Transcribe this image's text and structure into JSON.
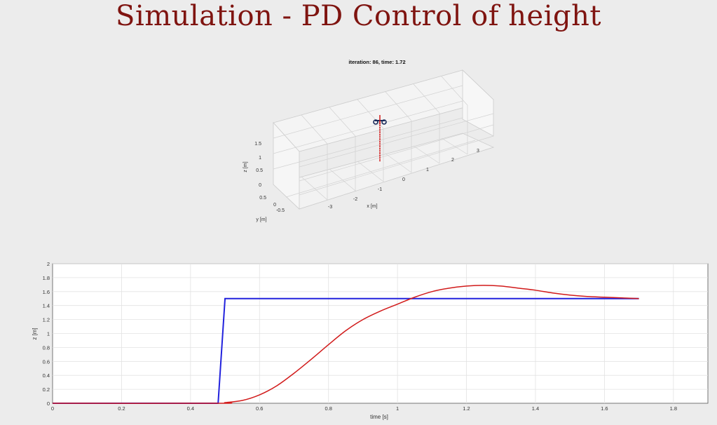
{
  "slide": {
    "title": "Simulation - PD Control of height"
  },
  "sim3d": {
    "iteration_label": "iteration: 86, time: 1.72",
    "xlabel": "x [m]",
    "ylabel": "y [m]",
    "zlabel": "z [m]",
    "x_ticks": [
      "-3",
      "-2",
      "-1",
      "0",
      "1",
      "2",
      "3"
    ],
    "y_ticks": [
      "0.5",
      "0",
      "-0.5"
    ],
    "z_ticks": [
      "0",
      "0.5",
      "1",
      "1.5"
    ],
    "trail_color": "#d11a1a",
    "quad_color": "#1a2a5a"
  },
  "chart_data": {
    "type": "line",
    "title": "",
    "xlabel": "time [s]",
    "ylabel": "z [m]",
    "xlim": [
      0,
      1.9
    ],
    "ylim": [
      0,
      2
    ],
    "grid": true,
    "x_ticks": [
      "0",
      "0.2",
      "0.4",
      "0.6",
      "0.8",
      "1",
      "1.2",
      "1.4",
      "1.6",
      "1.8"
    ],
    "y_ticks": [
      "0",
      "0.2",
      "0.4",
      "0.6",
      "0.8",
      "1",
      "1.2",
      "1.4",
      "1.6",
      "1.8",
      "2"
    ],
    "series": [
      {
        "color": "#2222dd",
        "x": [
          0,
          0.48,
          0.5,
          1.7
        ],
        "y": [
          0,
          0,
          1.5,
          1.5
        ]
      },
      {
        "color": "#d11a1a",
        "x": [
          0,
          0.48,
          0.5,
          0.55,
          0.6,
          0.65,
          0.7,
          0.75,
          0.8,
          0.85,
          0.9,
          0.95,
          1.0,
          1.05,
          1.1,
          1.15,
          1.2,
          1.25,
          1.3,
          1.35,
          1.4,
          1.45,
          1.5,
          1.55,
          1.6,
          1.65,
          1.7
        ],
        "y": [
          0,
          0,
          0.01,
          0.04,
          0.12,
          0.25,
          0.43,
          0.63,
          0.84,
          1.04,
          1.2,
          1.32,
          1.42,
          1.52,
          1.6,
          1.65,
          1.68,
          1.69,
          1.68,
          1.65,
          1.62,
          1.58,
          1.55,
          1.53,
          1.52,
          1.51,
          1.5
        ]
      }
    ]
  }
}
